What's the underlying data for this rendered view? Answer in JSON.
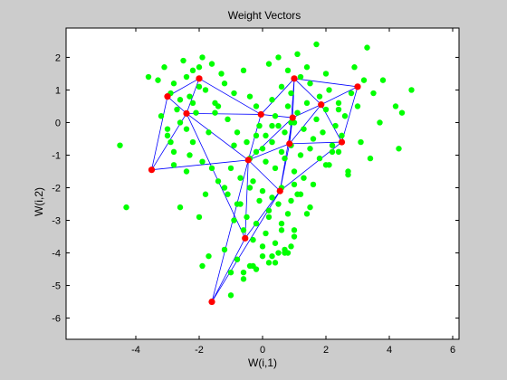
{
  "chart_data": {
    "type": "scatter",
    "title": "Weight Vectors",
    "xlabel": "W(i,1)",
    "ylabel": "W(i,2)",
    "xlim": [
      -6.2,
      6.2
    ],
    "ylim": [
      -6.65,
      2.9
    ],
    "xticks": [
      -4,
      -2,
      0,
      2,
      4,
      6
    ],
    "yticks": [
      2,
      1,
      0,
      -1,
      -2,
      -3,
      -4,
      -5,
      -6
    ],
    "grid": false,
    "legend": "none",
    "colors": {
      "figure_bg": "#cccccc",
      "axes_bg": "#ffffff",
      "data_points": "#00ff00",
      "weight_nodes": "#ff0000",
      "weight_edges": "#0000ff"
    },
    "series": [
      {
        "role": "data-points",
        "x": [
          -3.1,
          -2.5,
          -2.2,
          -1.9,
          -2.8,
          -2.4,
          -1.6,
          -2.0,
          -1.3,
          -2.9,
          -3.3,
          -2.6,
          -1.8,
          -2.3,
          -1.5,
          -2.1,
          -2.7,
          -3.6,
          -1.2,
          -0.9,
          -2.0,
          -2.6,
          -3.0,
          -1.4,
          -1.7,
          -0.6,
          -2.2,
          -3.2,
          -1.1,
          -2.8,
          -1.9,
          -2.4,
          -0.4,
          -0.2,
          0.3,
          0.6,
          0.9,
          1.2,
          1.5,
          1.8,
          2.1,
          2.4,
          2.8,
          3.2,
          0.4,
          0.8,
          1.1,
          1.4,
          1.7,
          2.0,
          2.3,
          2.6,
          3.0,
          3.5,
          0.1,
          0.5,
          0.7,
          1.0,
          1.3,
          1.6,
          1.9,
          2.2,
          2.5,
          2.9,
          3.3,
          3.8,
          4.2,
          4.7,
          4.4,
          3.7,
          0.0,
          0.3,
          0.6,
          0.9,
          1.2,
          1.5,
          1.8,
          2.1,
          2.4,
          0.2,
          0.5,
          0.8,
          1.1,
          1.4,
          1.7,
          2.0,
          -0.8,
          -0.5,
          -0.2,
          0.1,
          0.4,
          0.7,
          1.0,
          1.3,
          -0.3,
          0.0,
          0.3,
          0.6,
          0.9,
          1.2,
          1.6,
          2.0,
          2.7,
          3.4,
          -1.0,
          -0.7,
          -0.4,
          -0.1,
          0.2,
          0.5,
          0.8,
          1.1,
          -1.4,
          -1.1,
          -0.8,
          -0.5,
          -0.2,
          0.2,
          0.6,
          1.0,
          -0.9,
          -0.6,
          -0.3,
          0.0,
          0.4,
          0.8,
          -1.2,
          -0.8,
          -0.4,
          0.0,
          0.4,
          0.7,
          -1.0,
          -0.6,
          -0.2,
          0.2,
          0.5,
          -4.5,
          -4.3,
          -2.6,
          -1.8,
          -1.2,
          -0.7,
          0.1,
          0.6,
          1.0,
          -0.3,
          0.3,
          0.9,
          1.4,
          2.7,
          4.3,
          -0.9,
          -1.6,
          -0.4,
          -0.2,
          0.9,
          -2.2,
          -1.5,
          -3.0,
          -2.4,
          -2.9,
          -2.3,
          -0.1,
          -2.8,
          0.3,
          2.4,
          -1.7,
          -1.9,
          -0.6,
          3.1,
          1.0,
          1.5,
          -2.0,
          -1.0,
          0.7,
          2.2
        ],
        "y": [
          1.7,
          1.9,
          1.6,
          2.0,
          1.2,
          1.4,
          1.8,
          1.1,
          1.5,
          0.9,
          1.3,
          0.7,
          1.0,
          0.8,
          0.6,
          0.3,
          0.4,
          1.4,
          1.2,
          0.9,
          1.7,
          0.0,
          -0.2,
          0.5,
          -0.3,
          1.6,
          -0.6,
          0.2,
          0.1,
          -0.9,
          -1.2,
          -1.5,
          0.8,
          0.5,
          0.7,
          1.1,
          0.9,
          1.4,
          1.2,
          0.8,
          1.0,
          0.6,
          0.9,
          1.3,
          0.2,
          0.5,
          0.3,
          0.6,
          0.1,
          0.4,
          -0.1,
          0.2,
          0.5,
          0.9,
          -0.4,
          -0.1,
          -0.3,
          0.0,
          -0.2,
          -0.5,
          -0.3,
          -0.7,
          -0.4,
          1.7,
          2.3,
          1.3,
          0.5,
          1.0,
          0.3,
          0.0,
          -0.8,
          -0.6,
          -0.9,
          -0.7,
          -1.0,
          -0.8,
          -1.1,
          -1.3,
          -0.9,
          1.8,
          2.0,
          1.6,
          2.1,
          1.7,
          2.4,
          1.5,
          -0.3,
          -0.6,
          -0.9,
          -1.2,
          -1.4,
          -1.1,
          -1.5,
          -1.7,
          -1.8,
          -2.1,
          -2.3,
          -2.0,
          -2.4,
          -2.2,
          -1.9,
          -1.3,
          -1.6,
          -1.1,
          -1.4,
          -1.7,
          -2.0,
          -2.4,
          -2.7,
          -2.5,
          -2.8,
          -2.2,
          -1.8,
          -2.2,
          -2.5,
          -2.9,
          -3.1,
          -2.9,
          -3.3,
          -3.5,
          -3.0,
          -3.3,
          -3.6,
          -3.8,
          -3.7,
          -4.0,
          -3.9,
          -4.2,
          -4.4,
          -4.1,
          -4.3,
          -3.9,
          -4.6,
          -4.8,
          -4.5,
          -4.3,
          -4.0,
          -0.7,
          -2.6,
          -2.6,
          -2.2,
          -2.0,
          -2.5,
          -3.4,
          -3.1,
          -3.3,
          -4.4,
          -4.1,
          -3.8,
          -2.8,
          -1.5,
          -0.8,
          -0.7,
          -1.4,
          -1.1,
          -0.4,
          0.0,
          0.6,
          0.3,
          -0.4,
          -0.2,
          -0.6,
          -1.0,
          -0.1,
          -1.3,
          -0.1,
          0.4,
          -4.1,
          -4.4,
          -4.6,
          -0.6,
          -1.9,
          -2.6,
          -2.9,
          -5.3,
          -4.0,
          -0.9
        ]
      },
      {
        "role": "weight-nodes",
        "x": [
          -2.0,
          -3.0,
          -2.4,
          1.0,
          3.0,
          1.85,
          0.95,
          -0.05,
          0.85,
          2.5,
          -0.45,
          0.55,
          -3.5,
          -0.55,
          -1.6
        ],
        "y": [
          1.35,
          0.8,
          0.28,
          1.35,
          1.1,
          0.55,
          0.15,
          0.25,
          -0.65,
          -0.6,
          -1.15,
          -2.1,
          -1.45,
          -3.55,
          -5.5
        ]
      }
    ],
    "edges": [
      [
        0,
        1
      ],
      [
        0,
        2
      ],
      [
        0,
        7
      ],
      [
        1,
        2
      ],
      [
        1,
        12
      ],
      [
        2,
        12
      ],
      [
        2,
        7
      ],
      [
        2,
        10
      ],
      [
        2,
        13
      ],
      [
        7,
        3
      ],
      [
        7,
        6
      ],
      [
        7,
        10
      ],
      [
        3,
        4
      ],
      [
        3,
        5
      ],
      [
        3,
        6
      ],
      [
        3,
        8
      ],
      [
        4,
        5
      ],
      [
        4,
        9
      ],
      [
        5,
        6
      ],
      [
        5,
        8
      ],
      [
        5,
        9
      ],
      [
        6,
        8
      ],
      [
        6,
        10
      ],
      [
        6,
        11
      ],
      [
        8,
        9
      ],
      [
        8,
        10
      ],
      [
        8,
        11
      ],
      [
        9,
        11
      ],
      [
        10,
        11
      ],
      [
        10,
        13
      ],
      [
        10,
        14
      ],
      [
        11,
        13
      ],
      [
        11,
        14
      ],
      [
        12,
        10
      ],
      [
        13,
        14
      ]
    ]
  }
}
